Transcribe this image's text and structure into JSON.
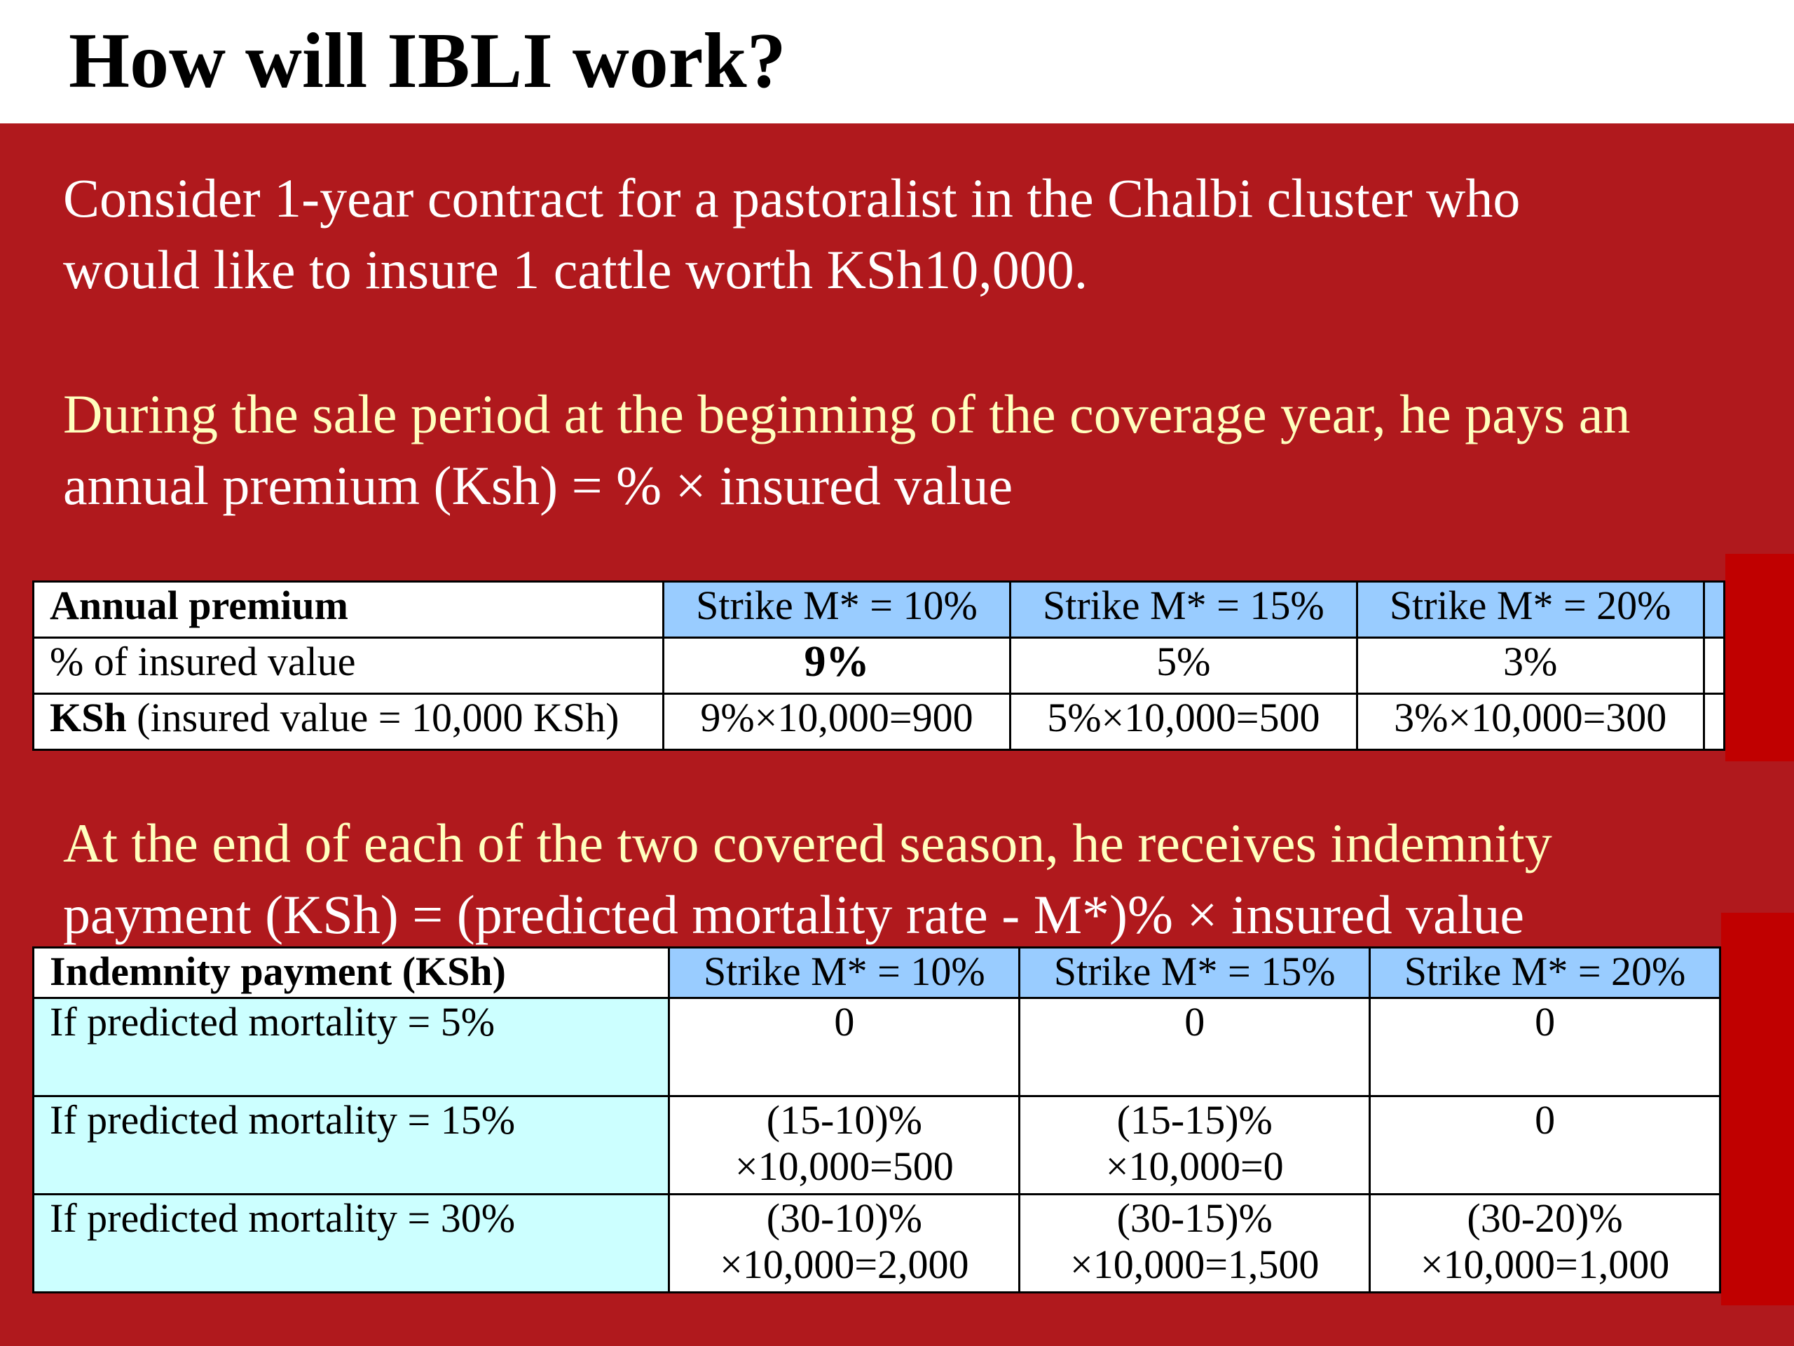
{
  "title": "How will IBLI work?",
  "intro": {
    "line1": "Consider 1-year contract for a pastoralist in the Chalbi cluster who",
    "line2": "would like to insure 1 cattle worth KSh10,000."
  },
  "premium_text": {
    "line1": "During the sale period at the beginning of the coverage year, he pays an",
    "line2": "annual premium (Ksh) = % × insured value"
  },
  "premium_table": {
    "header_label": "Annual premium",
    "strikes": [
      "Strike M* = 10%",
      "Strike M* = 15%",
      "Strike M* = 20%"
    ],
    "row1_label": "% of insured value",
    "row1_values": [
      "9%",
      "5%",
      "3%"
    ],
    "row2_label_bold": "KSh",
    "row2_label_rest": " (insured value = 10,000 KSh)",
    "row2_values": [
      "9%×10,000=900",
      "5%×10,000=500",
      "3%×10,000=300"
    ]
  },
  "indemnity_text": {
    "line1": "At the end of each of the two covered season, he receives indemnity",
    "line2": "payment (KSh) = (predicted mortality rate - M*)% × insured value"
  },
  "indemnity_table": {
    "header_label": "Indemnity payment (KSh)",
    "strikes": [
      "Strike M* = 10%",
      "Strike M* = 15%",
      "Strike M* = 20%"
    ],
    "rows": [
      {
        "label": "If predicted mortality = 5%",
        "values": [
          [
            "0",
            ""
          ],
          [
            "0",
            ""
          ],
          [
            "0",
            ""
          ]
        ]
      },
      {
        "label": "If predicted mortality = 15%",
        "values": [
          [
            "(15-10)%",
            "×10,000=500"
          ],
          [
            "(15-15)%",
            "×10,000=0"
          ],
          [
            "0",
            ""
          ]
        ]
      },
      {
        "label": "If predicted mortality = 30%",
        "values": [
          [
            "(30-10)%",
            "×10,000=2,000"
          ],
          [
            "(30-15)%",
            "×10,000=1,500"
          ],
          [
            "(30-20)%",
            "×10,000=1,000"
          ]
        ]
      }
    ]
  },
  "colors": {
    "slide_background": "#b0191d",
    "accent_yellow": "#ffffbe",
    "header_blue": "#99ccff",
    "row_cyan": "#ccffff",
    "edge_red": "#c00000"
  }
}
